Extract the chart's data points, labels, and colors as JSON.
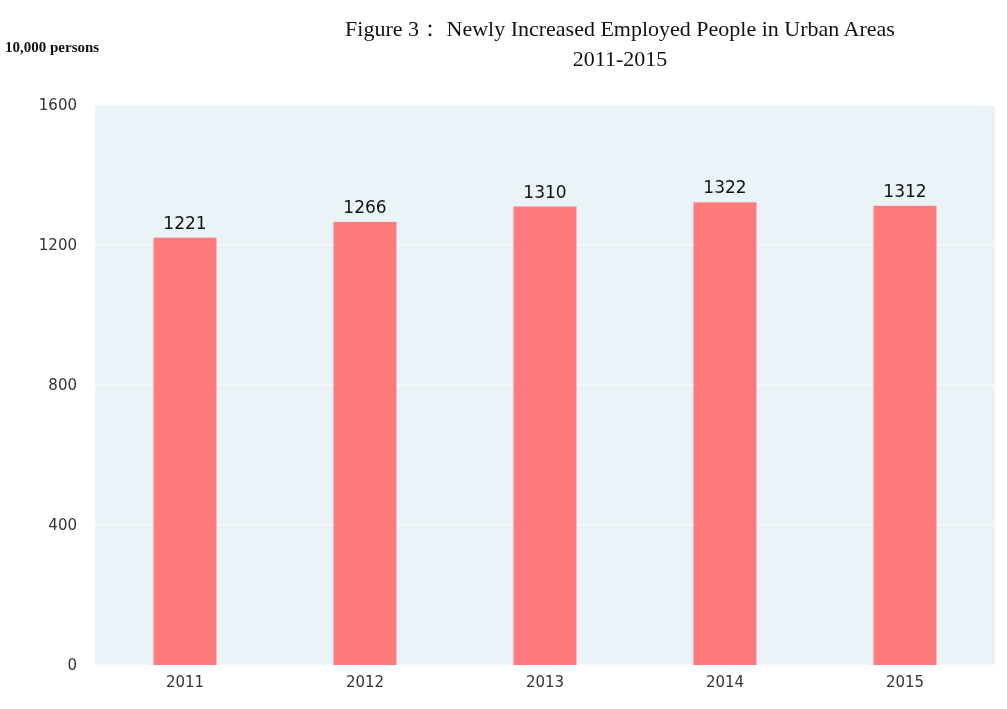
{
  "chart_data": {
    "type": "bar",
    "title": "Figure 3： Newly Increased Employed People in Urban Areas\n2011-2015",
    "ylabel": "10,000 persons",
    "categories": [
      "2011",
      "2012",
      "2013",
      "2014",
      "2015"
    ],
    "values": [
      1221,
      1266,
      1310,
      1322,
      1312
    ],
    "color": "#ff7b7b",
    "ylim": [
      0,
      1600
    ],
    "yticks": [
      0,
      400,
      800,
      1200,
      1600
    ],
    "grid": "y",
    "data_labels": true
  }
}
